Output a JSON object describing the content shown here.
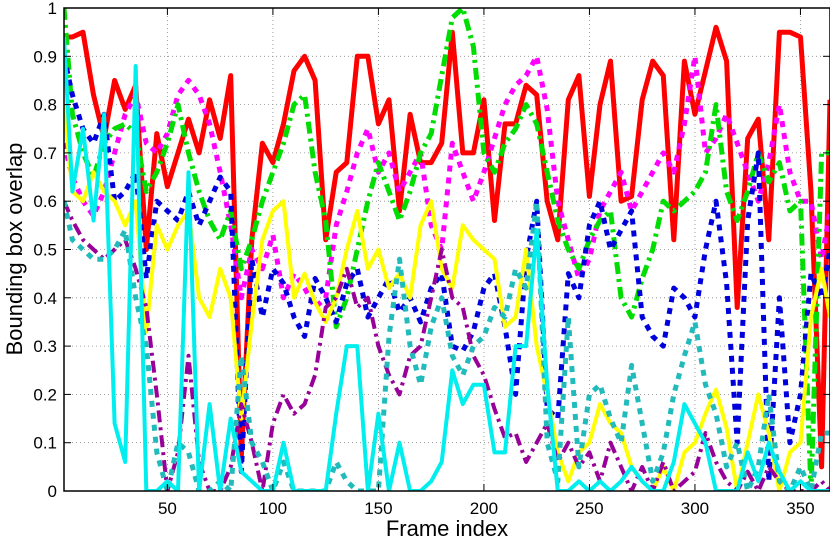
{
  "chart_data": {
    "type": "line",
    "title": "",
    "xlabel": "Frame index",
    "ylabel": "Bounding box overlap",
    "xlim": [
      1,
      364
    ],
    "ylim": [
      0,
      1
    ],
    "grid": true,
    "xticks": [
      50,
      100,
      150,
      200,
      250,
      300,
      350
    ],
    "yticks": [
      0,
      0.1,
      0.2,
      0.3,
      0.4,
      0.5,
      0.6,
      0.7,
      0.8,
      0.9,
      1
    ],
    "x": [
      1,
      5,
      10,
      15,
      20,
      25,
      30,
      35,
      40,
      45,
      50,
      55,
      60,
      65,
      70,
      75,
      80,
      85,
      90,
      95,
      100,
      105,
      110,
      115,
      120,
      125,
      130,
      135,
      140,
      145,
      150,
      155,
      160,
      165,
      170,
      175,
      180,
      185,
      190,
      195,
      200,
      205,
      210,
      215,
      220,
      225,
      230,
      235,
      240,
      245,
      250,
      255,
      260,
      265,
      270,
      275,
      280,
      285,
      290,
      295,
      300,
      305,
      310,
      315,
      320,
      325,
      330,
      335,
      340,
      345,
      350,
      355,
      360,
      364
    ],
    "series": [
      {
        "color": "#ff0000",
        "style": "solid",
        "width": 5,
        "values": [
          0.94,
          0.94,
          0.95,
          0.82,
          0.73,
          0.85,
          0.79,
          0.84,
          0.5,
          0.74,
          0.63,
          0.7,
          0.77,
          0.7,
          0.81,
          0.73,
          0.86,
          0.07,
          0.52,
          0.72,
          0.68,
          0.76,
          0.87,
          0.9,
          0.85,
          0.52,
          0.66,
          0.68,
          0.9,
          0.9,
          0.76,
          0.81,
          0.58,
          0.78,
          0.68,
          0.68,
          0.72,
          0.95,
          0.7,
          0.7,
          0.81,
          0.56,
          0.76,
          0.76,
          0.84,
          0.82,
          0.6,
          0.52,
          0.81,
          0.86,
          0.61,
          0.8,
          0.89,
          0.6,
          0.61,
          0.81,
          0.89,
          0.86,
          0.52,
          0.89,
          0.78,
          0.87,
          0.96,
          0.89,
          0.38,
          0.73,
          0.77,
          0.52,
          0.95,
          0.95,
          0.94,
          0.62,
          0.05,
          0.81
        ]
      },
      {
        "color": "#ff00ff",
        "style": "dotted",
        "width": 5,
        "values": [
          0.72,
          0.65,
          0.6,
          0.57,
          0.62,
          0.7,
          0.78,
          0.82,
          0.72,
          0.7,
          0.74,
          0.82,
          0.85,
          0.82,
          0.76,
          0.66,
          0.55,
          0.4,
          0.5,
          0.46,
          0.53,
          0.4,
          0.45,
          0.42,
          0.38,
          0.4,
          0.55,
          0.62,
          0.7,
          0.75,
          0.66,
          0.7,
          0.62,
          0.66,
          0.7,
          0.55,
          0.5,
          0.72,
          0.66,
          0.6,
          0.66,
          0.73,
          0.8,
          0.84,
          0.86,
          0.9,
          0.79,
          0.6,
          0.52,
          0.44,
          0.48,
          0.58,
          0.62,
          0.66,
          0.58,
          0.62,
          0.66,
          0.7,
          0.66,
          0.76,
          0.9,
          0.7,
          0.73,
          0.78,
          0.72,
          0.66,
          0.6,
          0.68,
          0.8,
          0.66,
          0.6,
          0.6,
          0.48,
          0.58
        ]
      },
      {
        "color": "#00dd00",
        "style": "dashdot",
        "width": 5,
        "values": [
          1.0,
          0.78,
          0.7,
          0.65,
          0.72,
          0.75,
          0.76,
          0.74,
          0.62,
          0.66,
          0.72,
          0.8,
          0.7,
          0.62,
          0.56,
          0.52,
          0.58,
          0.46,
          0.52,
          0.6,
          0.66,
          0.72,
          0.8,
          0.82,
          0.66,
          0.56,
          0.34,
          0.4,
          0.5,
          0.6,
          0.68,
          0.62,
          0.56,
          0.62,
          0.7,
          0.74,
          0.86,
          0.98,
          1.0,
          0.92,
          0.7,
          0.66,
          0.72,
          0.75,
          0.8,
          0.76,
          0.66,
          0.56,
          0.5,
          0.46,
          0.52,
          0.56,
          0.58,
          0.4,
          0.36,
          0.44,
          0.5,
          0.6,
          0.58,
          0.6,
          0.62,
          0.66,
          0.8,
          0.62,
          0.56,
          0.62,
          0.7,
          0.64,
          0.68,
          0.58,
          0.6,
          0.0,
          0.7,
          0.7
        ]
      },
      {
        "color": "#0000dd",
        "style": "dotted",
        "width": 5,
        "values": [
          0.9,
          0.82,
          0.75,
          0.72,
          0.78,
          0.6,
          0.62,
          0.66,
          0.44,
          0.6,
          0.58,
          0.56,
          0.62,
          0.55,
          0.6,
          0.65,
          0.62,
          0.04,
          0.48,
          0.36,
          0.46,
          0.43,
          0.36,
          0.32,
          0.44,
          0.4,
          0.35,
          0.43,
          0.46,
          0.36,
          0.4,
          0.44,
          0.37,
          0.4,
          0.35,
          0.42,
          0.45,
          0.3,
          0.29,
          0.33,
          0.42,
          0.45,
          0.34,
          0.2,
          0.48,
          0.6,
          0.17,
          0.15,
          0.45,
          0.4,
          0.55,
          0.6,
          0.5,
          0.54,
          0.58,
          0.36,
          0.32,
          0.3,
          0.42,
          0.4,
          0.36,
          0.5,
          0.6,
          0.43,
          0.1,
          0.56,
          0.7,
          0.02,
          0.4,
          0.1,
          0.2,
          0.45,
          0.4,
          0.5
        ]
      },
      {
        "color": "#ffff00",
        "style": "solid",
        "width": 4,
        "values": [
          0.8,
          0.62,
          0.6,
          0.66,
          0.62,
          0.6,
          0.55,
          0.6,
          0.33,
          0.55,
          0.5,
          0.55,
          0.58,
          0.4,
          0.36,
          0.46,
          0.4,
          0.15,
          0.35,
          0.52,
          0.58,
          0.6,
          0.4,
          0.45,
          0.39,
          0.35,
          0.4,
          0.5,
          0.58,
          0.46,
          0.5,
          0.42,
          0.45,
          0.4,
          0.55,
          0.6,
          0.46,
          0.42,
          0.55,
          0.52,
          0.5,
          0.48,
          0.34,
          0.36,
          0.5,
          0.3,
          0.2,
          0.08,
          0.02,
          0.08,
          0.1,
          0.18,
          0.14,
          0.12,
          0.05,
          0.02,
          0.0,
          0.05,
          0.0,
          0.08,
          0.1,
          0.16,
          0.21,
          0.13,
          0.0,
          0.1,
          0.2,
          0.12,
          0.0,
          0.08,
          0.1,
          0.36,
          0.46,
          0.36
        ]
      },
      {
        "color": "#990099",
        "style": "dashdot",
        "width": 4,
        "values": [
          0.6,
          0.56,
          0.52,
          0.5,
          0.48,
          0.5,
          0.52,
          0.46,
          0.38,
          0.2,
          0.0,
          0.08,
          0.28,
          0.06,
          0.0,
          0.0,
          0.05,
          0.18,
          0.1,
          0.0,
          0.14,
          0.2,
          0.16,
          0.18,
          0.24,
          0.38,
          0.4,
          0.46,
          0.38,
          0.4,
          0.3,
          0.24,
          0.2,
          0.28,
          0.3,
          0.4,
          0.5,
          0.4,
          0.38,
          0.28,
          0.24,
          0.17,
          0.11,
          0.12,
          0.06,
          0.1,
          0.14,
          0.06,
          0.1,
          0.05,
          0.08,
          0.02,
          0.1,
          0.05,
          0.0,
          0.05,
          0.0,
          0.06,
          0.0,
          0.02,
          0.04,
          0.12,
          0.06,
          0.02,
          0.0,
          0.04,
          0.0,
          0.05,
          0.02,
          0.0,
          0.0,
          0.0,
          0.02,
          0.0
        ]
      },
      {
        "color": "#22bbbb",
        "style": "dotted",
        "width": 5,
        "values": [
          0.6,
          0.52,
          0.5,
          0.48,
          0.48,
          0.5,
          0.54,
          0.4,
          0.3,
          0.08,
          0.0,
          0.1,
          0.08,
          0.0,
          0.0,
          0.02,
          0.0,
          0.28,
          0.1,
          0.06,
          0.0,
          0.06,
          0.0,
          0.0,
          0.0,
          0.0,
          0.06,
          0.02,
          0.0,
          0.0,
          0.0,
          0.32,
          0.48,
          0.3,
          0.22,
          0.34,
          0.4,
          0.28,
          0.24,
          0.3,
          0.32,
          0.38,
          0.36,
          0.46,
          0.42,
          0.6,
          0.1,
          0.02,
          0.36,
          0.05,
          0.2,
          0.22,
          0.15,
          0.1,
          0.26,
          0.14,
          0.02,
          0.08,
          0.2,
          0.28,
          0.35,
          0.22,
          0.16,
          0.05,
          0.1,
          0.0,
          0.05,
          0.2,
          0.02,
          0.0,
          0.05,
          0.0,
          0.12,
          0.12
        ]
      },
      {
        "color": "#00eeee",
        "style": "solid",
        "width": 4,
        "values": [
          0.94,
          0.62,
          0.75,
          0.56,
          0.78,
          0.14,
          0.06,
          0.88,
          0.0,
          0.0,
          0.02,
          0.0,
          0.66,
          0.0,
          0.18,
          0.0,
          0.15,
          0.04,
          0.02,
          0.0,
          0.0,
          0.1,
          0.0,
          0.0,
          0.0,
          0.0,
          0.16,
          0.3,
          0.3,
          0.0,
          0.16,
          0.0,
          0.1,
          0.0,
          0.0,
          0.02,
          0.06,
          0.25,
          0.18,
          0.22,
          0.22,
          0.08,
          0.08,
          0.3,
          0.3,
          0.54,
          0.22,
          0.0,
          0.0,
          0.02,
          0.0,
          0.02,
          0.0,
          0.02,
          0.05,
          0.02,
          0.0,
          0.0,
          0.06,
          0.18,
          0.14,
          0.1,
          0.0,
          0.0,
          0.0,
          0.08,
          0.02,
          0.1,
          0.04,
          0.0,
          0.02,
          0.0,
          0.0,
          0.0
        ]
      }
    ]
  }
}
